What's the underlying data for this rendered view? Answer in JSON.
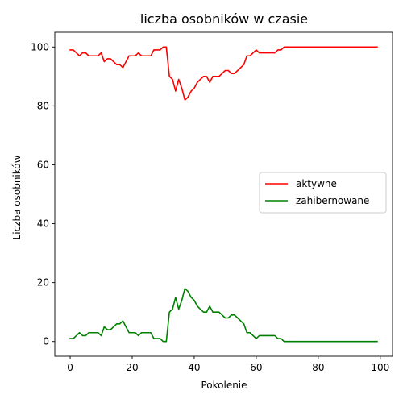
{
  "chart_data": {
    "type": "line",
    "title": "liczba osobników w czasie",
    "xlabel": "Pokolenie",
    "ylabel": "Liczba osobników",
    "xlim": [
      -4.95,
      103.95
    ],
    "ylim": [
      -5,
      105
    ],
    "xticks": [
      0,
      20,
      40,
      60,
      80,
      100
    ],
    "yticks": [
      0,
      20,
      40,
      60,
      80,
      100
    ],
    "grid": false,
    "legend_position": "center-right",
    "series": [
      {
        "name": "aktywne",
        "color": "#ff0000",
        "x": [
          0,
          1,
          2,
          3,
          4,
          5,
          6,
          7,
          8,
          9,
          10,
          11,
          12,
          13,
          14,
          15,
          16,
          17,
          18,
          19,
          20,
          21,
          22,
          23,
          24,
          25,
          26,
          27,
          28,
          29,
          30,
          31,
          32,
          33,
          34,
          35,
          36,
          37,
          38,
          39,
          40,
          41,
          42,
          43,
          44,
          45,
          46,
          47,
          48,
          49,
          50,
          51,
          52,
          53,
          54,
          55,
          56,
          57,
          58,
          59,
          60,
          61,
          62,
          63,
          64,
          65,
          66,
          67,
          68,
          69,
          70,
          71,
          72,
          73,
          74,
          75,
          76,
          77,
          78,
          79,
          80,
          81,
          82,
          83,
          84,
          85,
          86,
          87,
          88,
          89,
          90,
          91,
          92,
          93,
          94,
          95,
          96,
          97,
          98,
          99
        ],
        "values": [
          99,
          99,
          98,
          97,
          98,
          98,
          97,
          97,
          97,
          97,
          98,
          95,
          96,
          96,
          95,
          94,
          94,
          93,
          95,
          97,
          97,
          97,
          98,
          97,
          97,
          97,
          97,
          99,
          99,
          99,
          100,
          100,
          90,
          89,
          85,
          89,
          86,
          82,
          83,
          85,
          86,
          88,
          89,
          90,
          90,
          88,
          90,
          90,
          90,
          91,
          92,
          92,
          91,
          91,
          92,
          93,
          94,
          97,
          97,
          98,
          99,
          98,
          98,
          98,
          98,
          98,
          98,
          99,
          99,
          100,
          100,
          100,
          100,
          100,
          100,
          100,
          100,
          100,
          100,
          100,
          100,
          100,
          100,
          100,
          100,
          100,
          100,
          100,
          100,
          100,
          100,
          100,
          100,
          100,
          100,
          100,
          100,
          100,
          100,
          100
        ]
      },
      {
        "name": "zahibernowane",
        "color": "#008000",
        "x": [
          0,
          1,
          2,
          3,
          4,
          5,
          6,
          7,
          8,
          9,
          10,
          11,
          12,
          13,
          14,
          15,
          16,
          17,
          18,
          19,
          20,
          21,
          22,
          23,
          24,
          25,
          26,
          27,
          28,
          29,
          30,
          31,
          32,
          33,
          34,
          35,
          36,
          37,
          38,
          39,
          40,
          41,
          42,
          43,
          44,
          45,
          46,
          47,
          48,
          49,
          50,
          51,
          52,
          53,
          54,
          55,
          56,
          57,
          58,
          59,
          60,
          61,
          62,
          63,
          64,
          65,
          66,
          67,
          68,
          69,
          70,
          71,
          72,
          73,
          74,
          75,
          76,
          77,
          78,
          79,
          80,
          81,
          82,
          83,
          84,
          85,
          86,
          87,
          88,
          89,
          90,
          91,
          92,
          93,
          94,
          95,
          96,
          97,
          98,
          99
        ],
        "values": [
          1,
          1,
          2,
          3,
          2,
          2,
          3,
          3,
          3,
          3,
          2,
          5,
          4,
          4,
          5,
          6,
          6,
          7,
          5,
          3,
          3,
          3,
          2,
          3,
          3,
          3,
          3,
          1,
          1,
          1,
          0,
          0,
          10,
          11,
          15,
          11,
          14,
          18,
          17,
          15,
          14,
          12,
          11,
          10,
          10,
          12,
          10,
          10,
          10,
          9,
          8,
          8,
          9,
          9,
          8,
          7,
          6,
          3,
          3,
          2,
          1,
          2,
          2,
          2,
          2,
          2,
          2,
          1,
          1,
          0,
          0,
          0,
          0,
          0,
          0,
          0,
          0,
          0,
          0,
          0,
          0,
          0,
          0,
          0,
          0,
          0,
          0,
          0,
          0,
          0,
          0,
          0,
          0,
          0,
          0,
          0,
          0,
          0,
          0,
          0
        ]
      }
    ]
  }
}
